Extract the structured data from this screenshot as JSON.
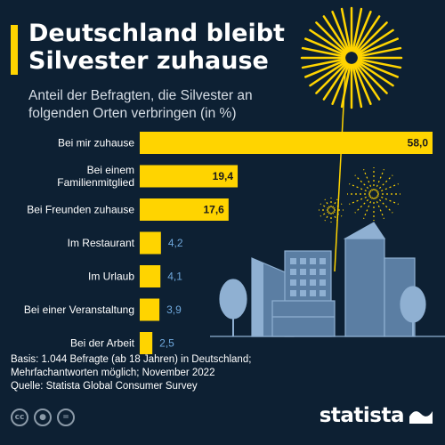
{
  "header": {
    "title": "Deutschland bleibt Silvester zuhause",
    "subtitle": "Anteil der Befragten, die Silvester an folgenden Orten verbringen (in %)"
  },
  "chart_data": {
    "type": "bar",
    "orientation": "horizontal",
    "title": "Deutschland bleibt Silvester zuhause",
    "subtitle": "Anteil der Befragten, die Silvester an folgenden Orten verbringen (in %)",
    "categories": [
      "Bei mir zuhause",
      "Bei einem Familienmitglied",
      "Bei Freunden zuhause",
      "Im Restaurant",
      "Im Urlaub",
      "Bei einer Veranstaltung",
      "Bei der Arbeit"
    ],
    "category_lines": [
      [
        "Bei mir zuhause"
      ],
      [
        "Bei einem",
        "Familienmitglied"
      ],
      [
        "Bei Freunden zuhause"
      ],
      [
        "Im Restaurant"
      ],
      [
        "Im Urlaub"
      ],
      [
        "Bei einer Veranstaltung"
      ],
      [
        "Bei der Arbeit"
      ]
    ],
    "values": [
      58.0,
      19.4,
      17.6,
      4.2,
      4.1,
      3.9,
      2.5
    ],
    "value_labels": [
      "58,0",
      "19,4",
      "17,6",
      "4,2",
      "4,1",
      "3,9",
      "2,5"
    ],
    "xlim": [
      0,
      58
    ],
    "grid": false,
    "bar_color": "#ffd400",
    "value_label_color": "#6fa8dc"
  },
  "footer": {
    "lines": [
      "Basis: 1.044 Befragte (ab 18 Jahren) in Deutschland;",
      "Mehrfachantworten möglich; November 2022",
      "Quelle: Statista Global Consumer Survey"
    ],
    "license_icons": [
      "cc-icon",
      "person-icon",
      "equals-icon"
    ],
    "brand": "statista"
  },
  "colors": {
    "background": "#0d2033",
    "accent": "#ffd400",
    "building": "#5b7ea3",
    "building_light": "#8fb0d2",
    "text": "#ffffff"
  }
}
